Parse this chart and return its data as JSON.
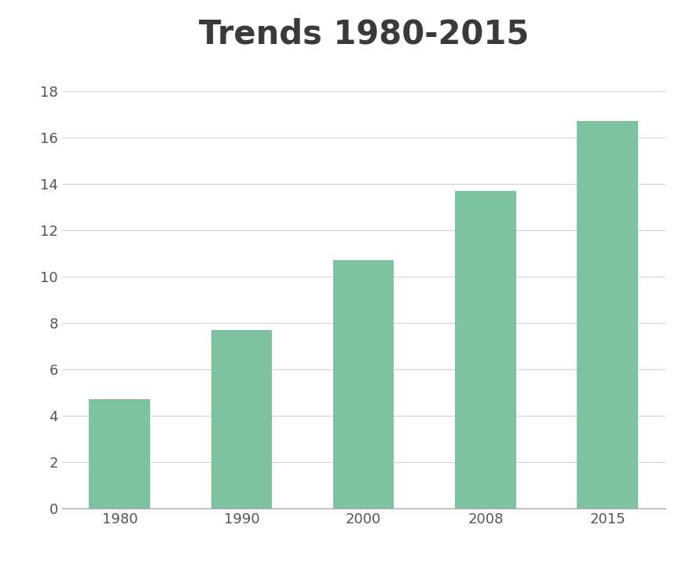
{
  "title": "Trends 1980-2015",
  "categories": [
    "1980",
    "1990",
    "2000",
    "2008",
    "2015"
  ],
  "values": [
    4.7,
    7.7,
    10.7,
    13.7,
    16.7
  ],
  "bar_color": "#7dc19e",
  "background_color": "#ffffff",
  "title_fontsize": 30,
  "title_fontweight": "bold",
  "title_color": "#3a3a3a",
  "ylim": [
    0,
    19
  ],
  "yticks": [
    0,
    2,
    4,
    6,
    8,
    10,
    12,
    14,
    16,
    18
  ],
  "tick_label_fontsize": 13,
  "tick_label_color": "#555555",
  "grid_color": "#d0d0d0",
  "grid_linewidth": 0.7,
  "bar_width": 0.5,
  "spine_bottom_color": "#aaaaaa"
}
